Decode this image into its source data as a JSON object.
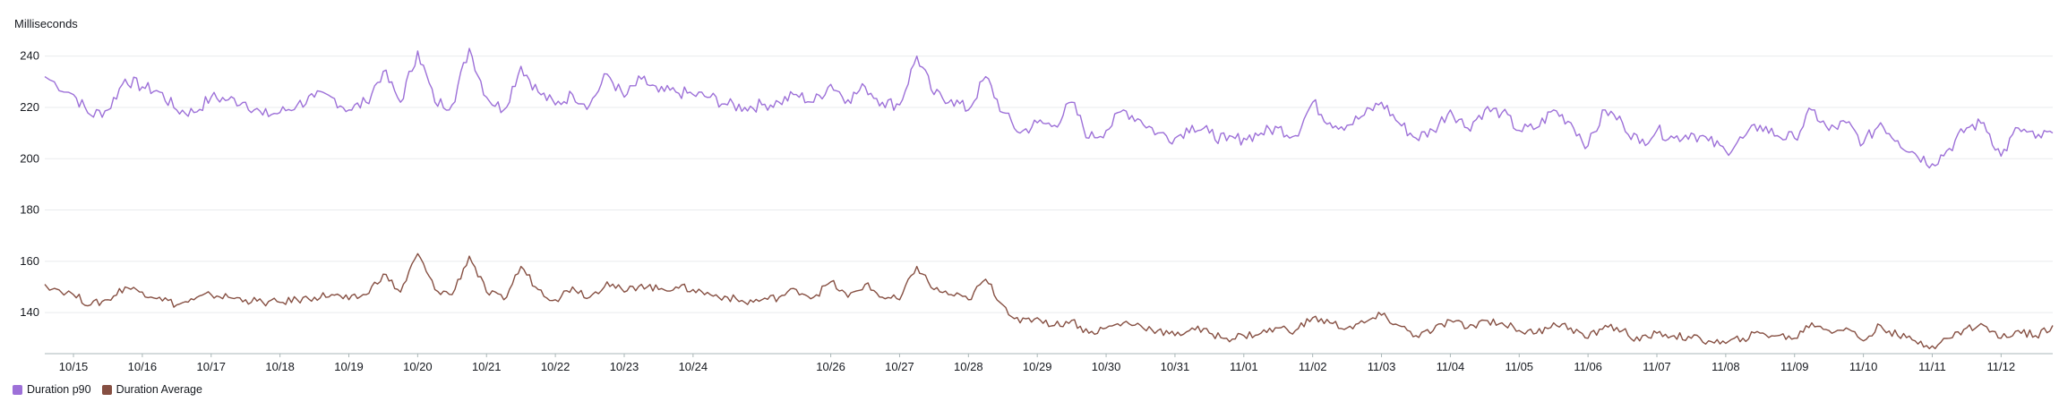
{
  "chart_data": {
    "type": "line",
    "ylabel": "Milliseconds",
    "ylim": [
      124,
      250
    ],
    "yticks": [
      140,
      160,
      180,
      200,
      220,
      240
    ],
    "xlim": [
      "10/14 14:00",
      "11/12 18:00"
    ],
    "x_tick_labels": [
      "10/15",
      "10/16",
      "10/17",
      "10/18",
      "10/19",
      "10/20",
      "10/21",
      "10/22",
      "10/23",
      "10/24",
      "10/26",
      "10/27",
      "10/28",
      "10/29",
      "10/30",
      "10/31",
      "11/01",
      "11/02",
      "11/03",
      "11/04",
      "11/05",
      "11/06",
      "11/07",
      "11/08",
      "11/09",
      "11/10",
      "11/11",
      "11/12"
    ],
    "grid": "horizontal",
    "legend_position": "bottom-left",
    "series": [
      {
        "name": "Duration p90",
        "color": "#9d70d8",
        "x": [
          "10/14 14:00",
          "10/15 00:00",
          "10/15 06:00",
          "10/15 12:00",
          "10/15 18:00",
          "10/16 00:00",
          "10/16 06:00",
          "10/16 12:00",
          "10/16 18:00",
          "10/17 00:00",
          "10/17 06:00",
          "10/17 12:00",
          "10/17 18:00",
          "10/18 00:00",
          "10/18 06:00",
          "10/18 12:00",
          "10/18 18:00",
          "10/19 00:00",
          "10/19 06:00",
          "10/19 12:00",
          "10/19 18:00",
          "10/20 00:00",
          "10/20 06:00",
          "10/20 12:00",
          "10/20 18:00",
          "10/21 00:00",
          "10/21 06:00",
          "10/21 12:00",
          "10/21 18:00",
          "10/22 00:00",
          "10/22 06:00",
          "10/22 12:00",
          "10/22 18:00",
          "10/23 00:00",
          "10/23 06:00",
          "10/23 12:00",
          "10/23 18:00",
          "10/24 00:00",
          "10/24 06:00",
          "10/24 12:00",
          "10/24 18:00",
          "10/25 00:00",
          "10/25 06:00",
          "10/25 12:00",
          "10/25 18:00",
          "10/26 00:00",
          "10/26 06:00",
          "10/26 12:00",
          "10/26 18:00",
          "10/27 00:00",
          "10/27 06:00",
          "10/27 12:00",
          "10/27 18:00",
          "10/28 00:00",
          "10/28 06:00",
          "10/28 12:00",
          "10/28 18:00",
          "10/29 00:00",
          "10/29 06:00",
          "10/29 12:00",
          "10/29 18:00",
          "10/30 00:00",
          "10/30 06:00",
          "10/30 12:00",
          "10/30 18:00",
          "10/31 00:00",
          "10/31 06:00",
          "10/31 12:00",
          "10/31 18:00",
          "11/01 00:00",
          "11/01 06:00",
          "11/01 12:00",
          "11/01 18:00",
          "11/02 00:00",
          "11/02 06:00",
          "11/02 12:00",
          "11/02 18:00",
          "11/03 00:00",
          "11/03 06:00",
          "11/03 12:00",
          "11/03 18:00",
          "11/04 00:00",
          "11/04 06:00",
          "11/04 12:00",
          "11/04 18:00",
          "11/05 00:00",
          "11/05 06:00",
          "11/05 12:00",
          "11/05 18:00",
          "11/06 00:00",
          "11/06 06:00",
          "11/06 12:00",
          "11/06 18:00",
          "11/07 00:00",
          "11/07 06:00",
          "11/07 12:00",
          "11/07 18:00",
          "11/08 00:00",
          "11/08 06:00",
          "11/08 12:00",
          "11/08 18:00",
          "11/09 00:00",
          "11/09 06:00",
          "11/09 12:00",
          "11/09 18:00",
          "11/10 00:00",
          "11/10 06:00",
          "11/10 12:00",
          "11/10 18:00",
          "11/11 00:00",
          "11/11 06:00",
          "11/11 12:00",
          "11/11 18:00",
          "11/12 00:00",
          "11/12 06:00",
          "11/12 12:00",
          "11/12 18:00"
        ],
        "y": [
          232,
          225,
          217,
          219,
          231,
          228,
          226,
          219,
          218,
          224,
          223,
          222,
          217,
          218,
          221,
          224,
          224,
          219,
          222,
          234,
          222,
          242,
          222,
          221,
          243,
          224,
          219,
          236,
          226,
          221,
          225,
          221,
          233,
          224,
          231,
          226,
          226,
          225,
          224,
          221,
          220,
          221,
          222,
          225,
          222,
          229,
          223,
          228,
          222,
          221,
          240,
          225,
          223,
          219,
          232,
          218,
          210,
          214,
          213,
          222,
          208,
          211,
          219,
          215,
          210,
          208,
          213,
          210,
          207,
          208,
          210,
          212,
          209,
          222,
          214,
          213,
          217,
          222,
          214,
          208,
          211,
          219,
          212,
          219,
          218,
          211,
          212,
          219,
          214,
          205,
          219,
          214,
          206,
          211,
          208,
          210,
          207,
          203,
          208,
          213,
          209,
          208,
          219,
          211,
          214,
          206,
          214,
          207,
          202,
          198,
          204,
          212,
          214,
          201,
          212,
          208,
          210
        ],
        "values": [
          232,
          225,
          217,
          219,
          231,
          228,
          226,
          219,
          218,
          224,
          223,
          222,
          217,
          218,
          221,
          224,
          224,
          219,
          222,
          234,
          222,
          242,
          222,
          221,
          243,
          224,
          219,
          236,
          226,
          221,
          225,
          221,
          233,
          224,
          231,
          226,
          226,
          225,
          224,
          221,
          220,
          221,
          222,
          225,
          222,
          229,
          223,
          228,
          222,
          221,
          240,
          225,
          223,
          219,
          232,
          218,
          210,
          214,
          213,
          222,
          208,
          211,
          219,
          215,
          210,
          208,
          213,
          210,
          207,
          208,
          210,
          212,
          209,
          222,
          214,
          213,
          217,
          222,
          214,
          208,
          211,
          219,
          212,
          219,
          218,
          211,
          212,
          219,
          214,
          205,
          219,
          214,
          206,
          211,
          208,
          210,
          207,
          203,
          208,
          213,
          209,
          208,
          219,
          211,
          214,
          206,
          214,
          207,
          202,
          198,
          204,
          212,
          214,
          201,
          212,
          208,
          210
        ]
      },
      {
        "name": "Duration Average",
        "color": "#864f42",
        "x": [
          "10/14 14:00",
          "10/15 00:00",
          "10/15 06:00",
          "10/15 12:00",
          "10/15 18:00",
          "10/16 00:00",
          "10/16 06:00",
          "10/16 12:00",
          "10/16 18:00",
          "10/17 00:00",
          "10/17 06:00",
          "10/17 12:00",
          "10/17 18:00",
          "10/18 00:00",
          "10/18 06:00",
          "10/18 12:00",
          "10/18 18:00",
          "10/19 00:00",
          "10/19 06:00",
          "10/19 12:00",
          "10/19 18:00",
          "10/20 00:00",
          "10/20 06:00",
          "10/20 12:00",
          "10/20 18:00",
          "10/21 00:00",
          "10/21 06:00",
          "10/21 12:00",
          "10/21 18:00",
          "10/22 00:00",
          "10/22 06:00",
          "10/22 12:00",
          "10/22 18:00",
          "10/23 00:00",
          "10/23 06:00",
          "10/23 12:00",
          "10/23 18:00",
          "10/24 00:00",
          "10/24 06:00",
          "10/24 12:00",
          "10/24 18:00",
          "10/25 00:00",
          "10/25 06:00",
          "10/25 12:00",
          "10/25 18:00",
          "10/26 00:00",
          "10/26 06:00",
          "10/26 12:00",
          "10/26 18:00",
          "10/27 00:00",
          "10/27 06:00",
          "10/27 12:00",
          "10/27 18:00",
          "10/28 00:00",
          "10/28 06:00",
          "10/28 12:00",
          "10/28 18:00",
          "10/29 00:00",
          "10/29 06:00",
          "10/29 12:00",
          "10/29 18:00",
          "10/30 00:00",
          "10/30 06:00",
          "10/30 12:00",
          "10/30 18:00",
          "10/31 00:00",
          "10/31 06:00",
          "10/31 12:00",
          "10/31 18:00",
          "11/01 00:00",
          "11/01 06:00",
          "11/01 12:00",
          "11/01 18:00",
          "11/02 00:00",
          "11/02 06:00",
          "11/02 12:00",
          "11/02 18:00",
          "11/03 00:00",
          "11/03 06:00",
          "11/03 12:00",
          "11/03 18:00",
          "11/04 00:00",
          "11/04 06:00",
          "11/04 12:00",
          "11/04 18:00",
          "11/05 00:00",
          "11/05 06:00",
          "11/05 12:00",
          "11/05 18:00",
          "11/06 00:00",
          "11/06 06:00",
          "11/06 12:00",
          "11/06 18:00",
          "11/07 00:00",
          "11/07 06:00",
          "11/07 12:00",
          "11/07 18:00",
          "11/08 00:00",
          "11/08 06:00",
          "11/08 12:00",
          "11/08 18:00",
          "11/09 00:00",
          "11/09 06:00",
          "11/09 12:00",
          "11/09 18:00",
          "11/10 00:00",
          "11/10 06:00",
          "11/10 12:00",
          "11/10 18:00",
          "11/11 00:00",
          "11/11 06:00",
          "11/11 12:00",
          "11/11 18:00",
          "11/12 00:00",
          "11/12 06:00",
          "11/12 12:00",
          "11/12 18:00"
        ],
        "y": [
          151,
          147,
          143,
          145,
          150,
          148,
          146,
          143,
          145,
          147,
          146,
          145,
          144,
          144,
          145,
          146,
          147,
          145,
          147,
          155,
          148,
          163,
          149,
          147,
          162,
          148,
          145,
          158,
          149,
          145,
          150,
          146,
          152,
          148,
          151,
          149,
          150,
          149,
          147,
          146,
          144,
          145,
          146,
          149,
          146,
          152,
          146,
          151,
          146,
          145,
          158,
          149,
          147,
          145,
          153,
          143,
          136,
          138,
          135,
          137,
          132,
          134,
          136,
          135,
          133,
          131,
          134,
          132,
          130,
          131,
          132,
          134,
          133,
          138,
          136,
          134,
          136,
          139,
          135,
          131,
          133,
          137,
          134,
          137,
          136,
          133,
          132,
          136,
          134,
          130,
          135,
          133,
          129,
          132,
          131,
          130,
          129,
          128,
          130,
          132,
          131,
          130,
          136,
          133,
          134,
          129,
          135,
          131,
          129,
          127,
          130,
          134,
          135,
          130,
          133,
          131,
          135
        ],
        "values": [
          151,
          147,
          143,
          145,
          150,
          148,
          146,
          143,
          145,
          147,
          146,
          145,
          144,
          144,
          145,
          146,
          147,
          145,
          147,
          155,
          148,
          163,
          149,
          147,
          162,
          148,
          145,
          158,
          149,
          145,
          150,
          146,
          152,
          148,
          151,
          149,
          150,
          149,
          147,
          146,
          144,
          145,
          146,
          149,
          146,
          152,
          146,
          151,
          146,
          145,
          158,
          149,
          147,
          145,
          153,
          143,
          136,
          138,
          135,
          137,
          132,
          134,
          136,
          135,
          133,
          131,
          134,
          132,
          130,
          131,
          132,
          134,
          133,
          138,
          136,
          134,
          136,
          139,
          135,
          131,
          133,
          137,
          134,
          137,
          136,
          133,
          132,
          136,
          134,
          130,
          135,
          133,
          129,
          132,
          131,
          130,
          129,
          128,
          130,
          132,
          131,
          130,
          136,
          133,
          134,
          129,
          135,
          131,
          129,
          127,
          130,
          134,
          135,
          130,
          133,
          131,
          135
        ]
      }
    ]
  }
}
